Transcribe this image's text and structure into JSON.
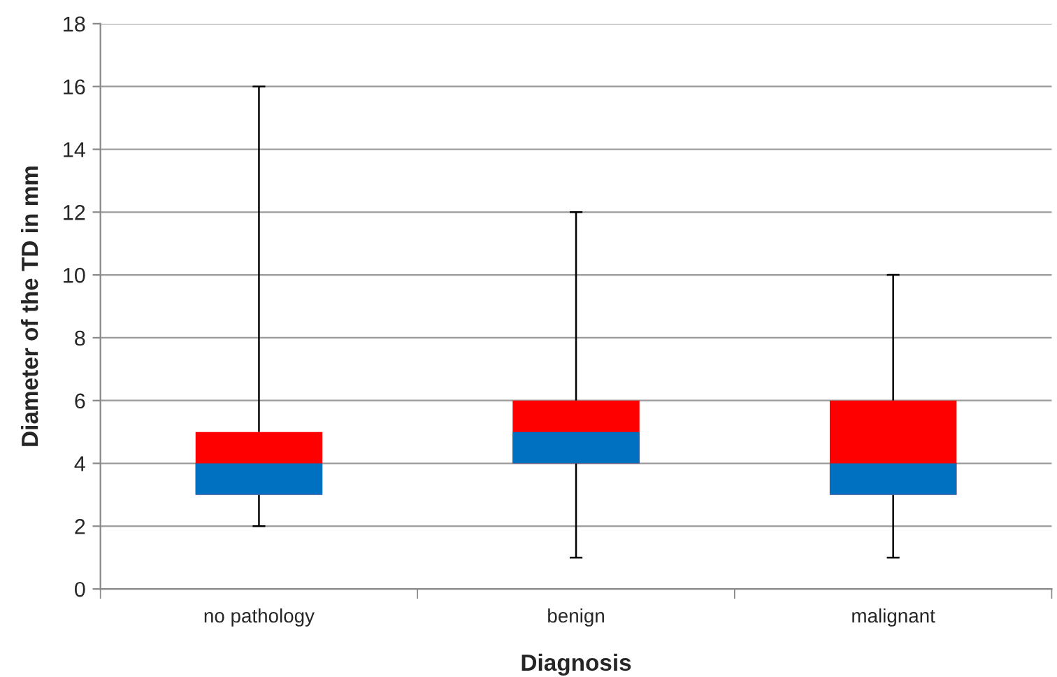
{
  "chart_data": {
    "type": "box",
    "xlabel": "Diagnosis",
    "ylabel": "Diameter of the TD in mm",
    "categories": [
      "no pathology",
      "benign",
      "malignant"
    ],
    "series": [
      {
        "color": "#0070c0",
        "boxes": [
          {
            "low": 2,
            "q1": 3,
            "median": 4,
            "q3": 5,
            "high": 16
          },
          {
            "low": 1,
            "q1": 4,
            "median": 5,
            "q3": 6,
            "high": 12
          },
          {
            "low": 1,
            "q1": 3,
            "median": 4,
            "q3": 6,
            "high": 10
          }
        ],
        "colors": [
          "#ff0000",
          "#ff0000",
          "#ff0000"
        ]
      }
    ],
    "ylim": [
      0,
      18
    ],
    "yticks": [
      0,
      2,
      4,
      6,
      8,
      10,
      12,
      14,
      16,
      18
    ],
    "grid": "y",
    "legend": false
  }
}
